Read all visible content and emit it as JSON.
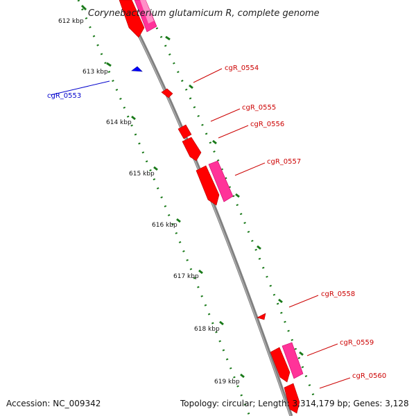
{
  "title": "Corynebacterium glutamicum R, complete genome",
  "footer": {
    "accession": "Accession: NC_009342",
    "topology": "Topology: circular; Length: 3,314,179 bp; Genes: 3,128"
  },
  "colors": {
    "backbone": "#808080",
    "tick": "#1a7a1a",
    "forward_gene": "#ff0000",
    "forward_gene_dark": "#b30000",
    "reverse_gene": "#0000ff",
    "cds_feature": "#ff3399",
    "label_forward": "#cc0000",
    "label_reverse": "#0000cc"
  },
  "scale": {
    "unit": "kbp",
    "ticks": [
      "612 kbp",
      "613 kbp",
      "614 kbp",
      "615 kbp",
      "616 kbp",
      "617 kbp",
      "618 kbp",
      "619 kbp"
    ]
  },
  "genes": [
    {
      "name": "cgR_0553",
      "strand": "reverse"
    },
    {
      "name": "cgR_0554",
      "strand": "forward"
    },
    {
      "name": "cgR_0555",
      "strand": "forward"
    },
    {
      "name": "cgR_0556",
      "strand": "forward"
    },
    {
      "name": "cgR_0557",
      "strand": "forward"
    },
    {
      "name": "cgR_0558",
      "strand": "forward"
    },
    {
      "name": "cgR_0559",
      "strand": "forward"
    },
    {
      "name": "cgR_0560",
      "strand": "forward"
    }
  ]
}
